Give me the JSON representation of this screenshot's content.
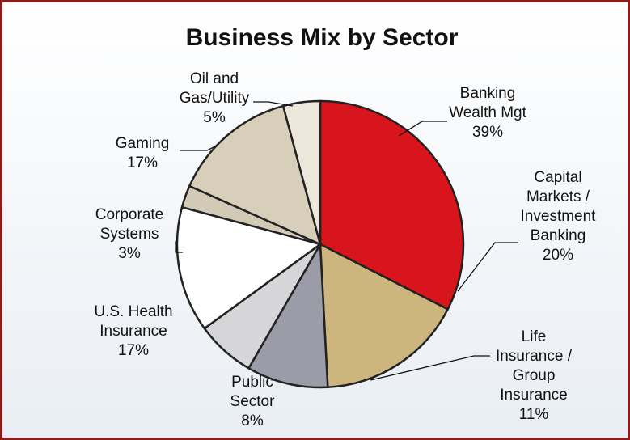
{
  "chart_data": {
    "type": "pie",
    "title": "Business Mix by Sector",
    "categories": [
      [
        "Banking",
        "Wealth Mgt"
      ],
      [
        "Capital",
        "Markets /",
        "Investment",
        "Banking"
      ],
      [
        "Life",
        "Insurance /",
        "Group",
        "Insurance"
      ],
      [
        "Public",
        "Sector"
      ],
      [
        "U.S. Health",
        "Insurance"
      ],
      [
        "Corporate",
        "Systems"
      ],
      [
        "Gaming"
      ],
      [
        "Oil and",
        "Gas/Utility"
      ]
    ],
    "values": [
      39,
      20,
      11,
      8,
      17,
      3,
      17,
      5
    ],
    "value_labels": [
      "39%",
      "20%",
      "11%",
      "8%",
      "17%",
      "3%",
      "17%",
      "5%"
    ],
    "colors": [
      "#d8141c",
      "#cdb67e",
      "#9c9ba8",
      "#d6d6d8",
      "#ffffff",
      "#d2c9b6",
      "#d8cfba",
      "#ede6da"
    ]
  }
}
